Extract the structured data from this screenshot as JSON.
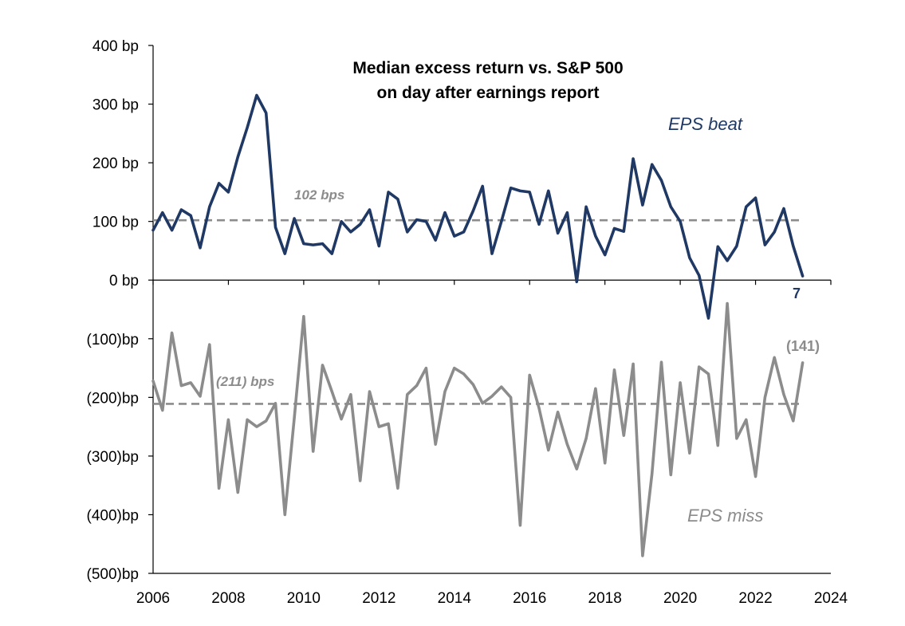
{
  "chart_data": {
    "type": "line",
    "title": "Median excess return vs. S&P 500",
    "subtitle": "on day after earnings report",
    "xlabel": "",
    "ylabel": "",
    "xlim": [
      2006,
      2024
    ],
    "ylim": [
      -500,
      400
    ],
    "grid": false,
    "x_ticks": [
      "2006",
      "2008",
      "2010",
      "2012",
      "2014",
      "2016",
      "2018",
      "2020",
      "2022",
      "2024"
    ],
    "y_ticks": [
      {
        "value": 400,
        "label": "400 bp"
      },
      {
        "value": 300,
        "label": "300 bp"
      },
      {
        "value": 200,
        "label": "200 bp"
      },
      {
        "value": 100,
        "label": "100 bp"
      },
      {
        "value": 0,
        "label": "0 bp"
      },
      {
        "value": -100,
        "label": "(100)bp"
      },
      {
        "value": -200,
        "label": "(200)bp"
      },
      {
        "value": -300,
        "label": "(300)bp"
      },
      {
        "value": -400,
        "label": "(400)bp"
      },
      {
        "value": -500,
        "label": "(500)bp"
      }
    ],
    "x": [
      2006.0,
      2006.25,
      2006.5,
      2006.75,
      2007.0,
      2007.25,
      2007.5,
      2007.75,
      2008.0,
      2008.25,
      2008.5,
      2008.75,
      2009.0,
      2009.25,
      2009.5,
      2009.75,
      2010.0,
      2010.25,
      2010.5,
      2010.75,
      2011.0,
      2011.25,
      2011.5,
      2011.75,
      2012.0,
      2012.25,
      2012.5,
      2012.75,
      2013.0,
      2013.25,
      2013.5,
      2013.75,
      2014.0,
      2014.25,
      2014.5,
      2014.75,
      2015.0,
      2015.25,
      2015.5,
      2015.75,
      2016.0,
      2016.25,
      2016.5,
      2016.75,
      2017.0,
      2017.25,
      2017.5,
      2017.75,
      2018.0,
      2018.25,
      2018.5,
      2018.75,
      2019.0,
      2019.25,
      2019.5,
      2019.75,
      2020.0,
      2020.25,
      2020.5,
      2020.75,
      2021.0,
      2021.25,
      2021.5,
      2021.75,
      2022.0,
      2022.25,
      2022.5,
      2022.75,
      2023.0,
      2023.25
    ],
    "series": [
      {
        "name": "EPS beat",
        "color": "#1f3864",
        "average": 102,
        "average_label": "102 bps",
        "end_label": "7",
        "values": [
          85,
          115,
          85,
          120,
          110,
          55,
          125,
          165,
          150,
          210,
          260,
          315,
          285,
          90,
          45,
          105,
          62,
          60,
          62,
          45,
          100,
          82,
          95,
          120,
          58,
          150,
          138,
          82,
          103,
          100,
          68,
          115,
          75,
          82,
          118,
          160,
          45,
          100,
          157,
          152,
          150,
          95,
          152,
          80,
          115,
          -3,
          125,
          75,
          43,
          88,
          83,
          207,
          128,
          197,
          170,
          125,
          100,
          38,
          8,
          -65,
          57,
          33,
          58,
          125,
          140,
          60,
          82,
          122,
          58,
          7
        ]
      },
      {
        "name": "EPS miss",
        "color": "#8c8c8c",
        "average": -211,
        "average_label": "(211) bps",
        "end_label": "(141)",
        "values": [
          -172,
          -222,
          -90,
          -180,
          -175,
          -198,
          -110,
          -355,
          -238,
          -362,
          -238,
          -250,
          -240,
          -210,
          -400,
          -235,
          -62,
          -292,
          -145,
          -190,
          -237,
          -195,
          -342,
          -190,
          -250,
          -245,
          -355,
          -195,
          -180,
          -150,
          -280,
          -190,
          -150,
          -160,
          -178,
          -210,
          -198,
          -182,
          -200,
          -418,
          -162,
          -218,
          -290,
          -225,
          -280,
          -322,
          -270,
          -185,
          -312,
          -153,
          -265,
          -143,
          -470,
          -330,
          -140,
          -332,
          -175,
          -295,
          -148,
          -160,
          -282,
          -40,
          -270,
          -238,
          -335,
          -200,
          -132,
          -195,
          -240,
          -141
        ]
      }
    ]
  }
}
